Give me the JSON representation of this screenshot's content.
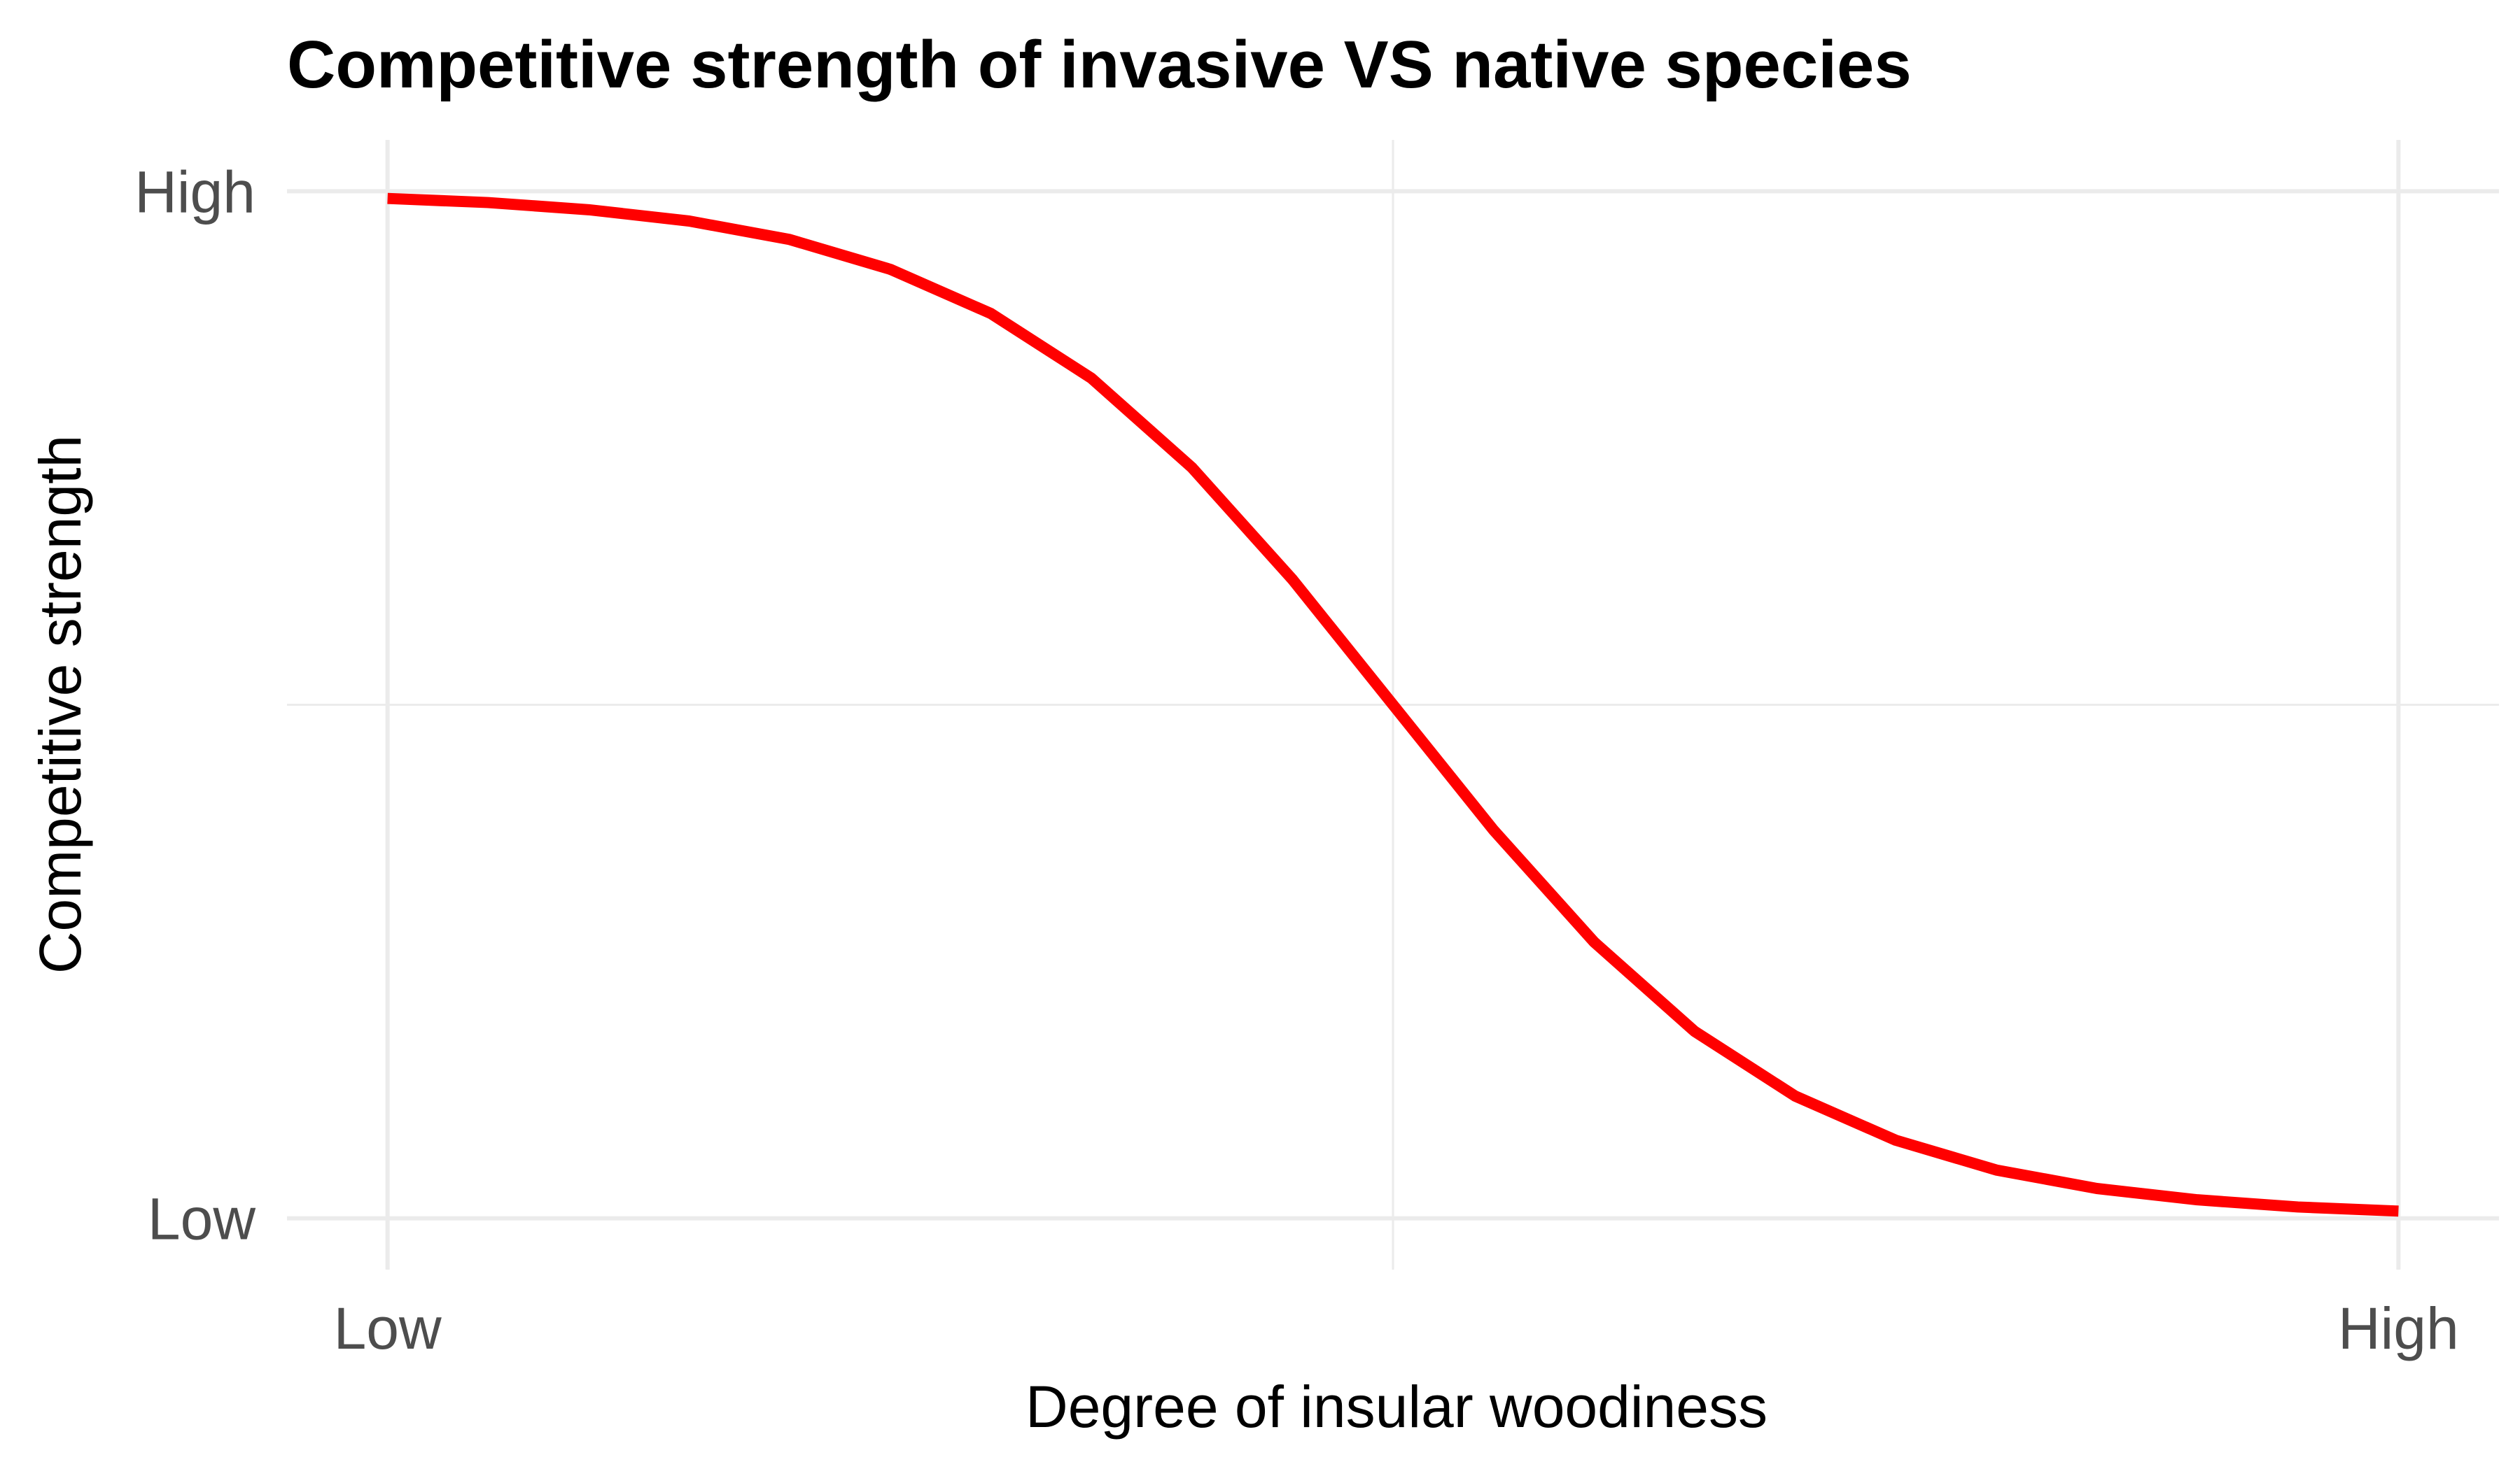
{
  "chart_data": {
    "type": "line",
    "title": "Competitive strength of invasive VS native species",
    "xlabel": "Degree of insular woodiness",
    "ylabel": "Competitive strength",
    "xlim": [
      -0.05,
      1.05
    ],
    "ylim": [
      -0.05,
      1.05
    ],
    "x_ticks": [
      {
        "value": 0,
        "label": "Low"
      },
      {
        "value": 1,
        "label": "High"
      }
    ],
    "y_ticks": [
      {
        "value": 0,
        "label": "Low"
      },
      {
        "value": 1,
        "label": "High"
      }
    ],
    "grid": true,
    "legend": "none",
    "line_color": "#ff0000",
    "series": [
      {
        "x": [
          0,
          0.05,
          0.1,
          0.15,
          0.2,
          0.25,
          0.3,
          0.35,
          0.4,
          0.45,
          0.5,
          0.55,
          0.6,
          0.65,
          0.7,
          0.75,
          0.8,
          0.85,
          0.9,
          0.95,
          1
        ],
        "y": [
          0.993,
          0.989,
          0.982,
          0.971,
          0.953,
          0.924,
          0.881,
          0.818,
          0.731,
          0.622,
          0.5,
          0.378,
          0.269,
          0.182,
          0.119,
          0.076,
          0.047,
          0.029,
          0.018,
          0.011,
          0.007
        ]
      }
    ]
  }
}
